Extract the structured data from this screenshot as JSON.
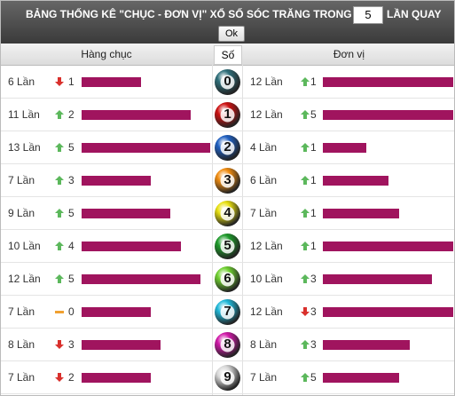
{
  "header": {
    "title": "BẢNG THỐNG KÊ \"CHỤC - ĐƠN VỊ\" XỔ SỐ SÓC TRĂNG TRONG",
    "input_value": "5",
    "suffix": "LẦN QUAY",
    "button": "Ok"
  },
  "columns": {
    "tens": "Hàng chục",
    "digit": "Số",
    "units": "Đơn vị"
  },
  "rows": [
    {
      "digit": 0,
      "ball_color": "#2f6f7a",
      "tens": {
        "count": 6,
        "count_label": "6 Lần",
        "trend": "down",
        "change": 1
      },
      "units": {
        "count": 12,
        "count_label": "12 Lần",
        "trend": "up",
        "change": 1
      }
    },
    {
      "digit": 1,
      "ball_color": "#cc1111",
      "tens": {
        "count": 11,
        "count_label": "11 Lần",
        "trend": "up",
        "change": 2
      },
      "units": {
        "count": 12,
        "count_label": "12 Lần",
        "trend": "up",
        "change": 5
      }
    },
    {
      "digit": 2,
      "ball_color": "#1f5fc0",
      "tens": {
        "count": 13,
        "count_label": "13 Lần",
        "trend": "up",
        "change": 5
      },
      "units": {
        "count": 4,
        "count_label": "4 Lần",
        "trend": "up",
        "change": 1
      }
    },
    {
      "digit": 3,
      "ball_color": "#f08c10",
      "tens": {
        "count": 7,
        "count_label": "7 Lần",
        "trend": "up",
        "change": 3
      },
      "units": {
        "count": 6,
        "count_label": "6 Lần",
        "trend": "up",
        "change": 1
      }
    },
    {
      "digit": 4,
      "ball_color": "#e8e010",
      "tens": {
        "count": 9,
        "count_label": "9 Lần",
        "trend": "up",
        "change": 5
      },
      "units": {
        "count": 7,
        "count_label": "7 Lần",
        "trend": "up",
        "change": 1
      }
    },
    {
      "digit": 5,
      "ball_color": "#1d9a2a",
      "tens": {
        "count": 10,
        "count_label": "10 Lần",
        "trend": "up",
        "change": 4
      },
      "units": {
        "count": 12,
        "count_label": "12 Lần",
        "trend": "up",
        "change": 1
      }
    },
    {
      "digit": 6,
      "ball_color": "#6fd030",
      "tens": {
        "count": 12,
        "count_label": "12 Lần",
        "trend": "up",
        "change": 5
      },
      "units": {
        "count": 10,
        "count_label": "10 Lần",
        "trend": "up",
        "change": 3
      }
    },
    {
      "digit": 7,
      "ball_color": "#20b8d8",
      "tens": {
        "count": 7,
        "count_label": "7 Lần",
        "trend": "flat",
        "change": 0
      },
      "units": {
        "count": 12,
        "count_label": "12 Lần",
        "trend": "down",
        "change": 3
      }
    },
    {
      "digit": 8,
      "ball_color": "#d018a8",
      "tens": {
        "count": 8,
        "count_label": "8 Lần",
        "trend": "down",
        "change": 3
      },
      "units": {
        "count": 8,
        "count_label": "8 Lần",
        "trend": "up",
        "change": 3
      }
    },
    {
      "digit": 9,
      "ball_color": "#d8d8d8",
      "tens": {
        "count": 7,
        "count_label": "7 Lần",
        "trend": "down",
        "change": 2
      },
      "units": {
        "count": 7,
        "count_label": "7 Lần",
        "trend": "up",
        "change": 5
      }
    }
  ]
}
